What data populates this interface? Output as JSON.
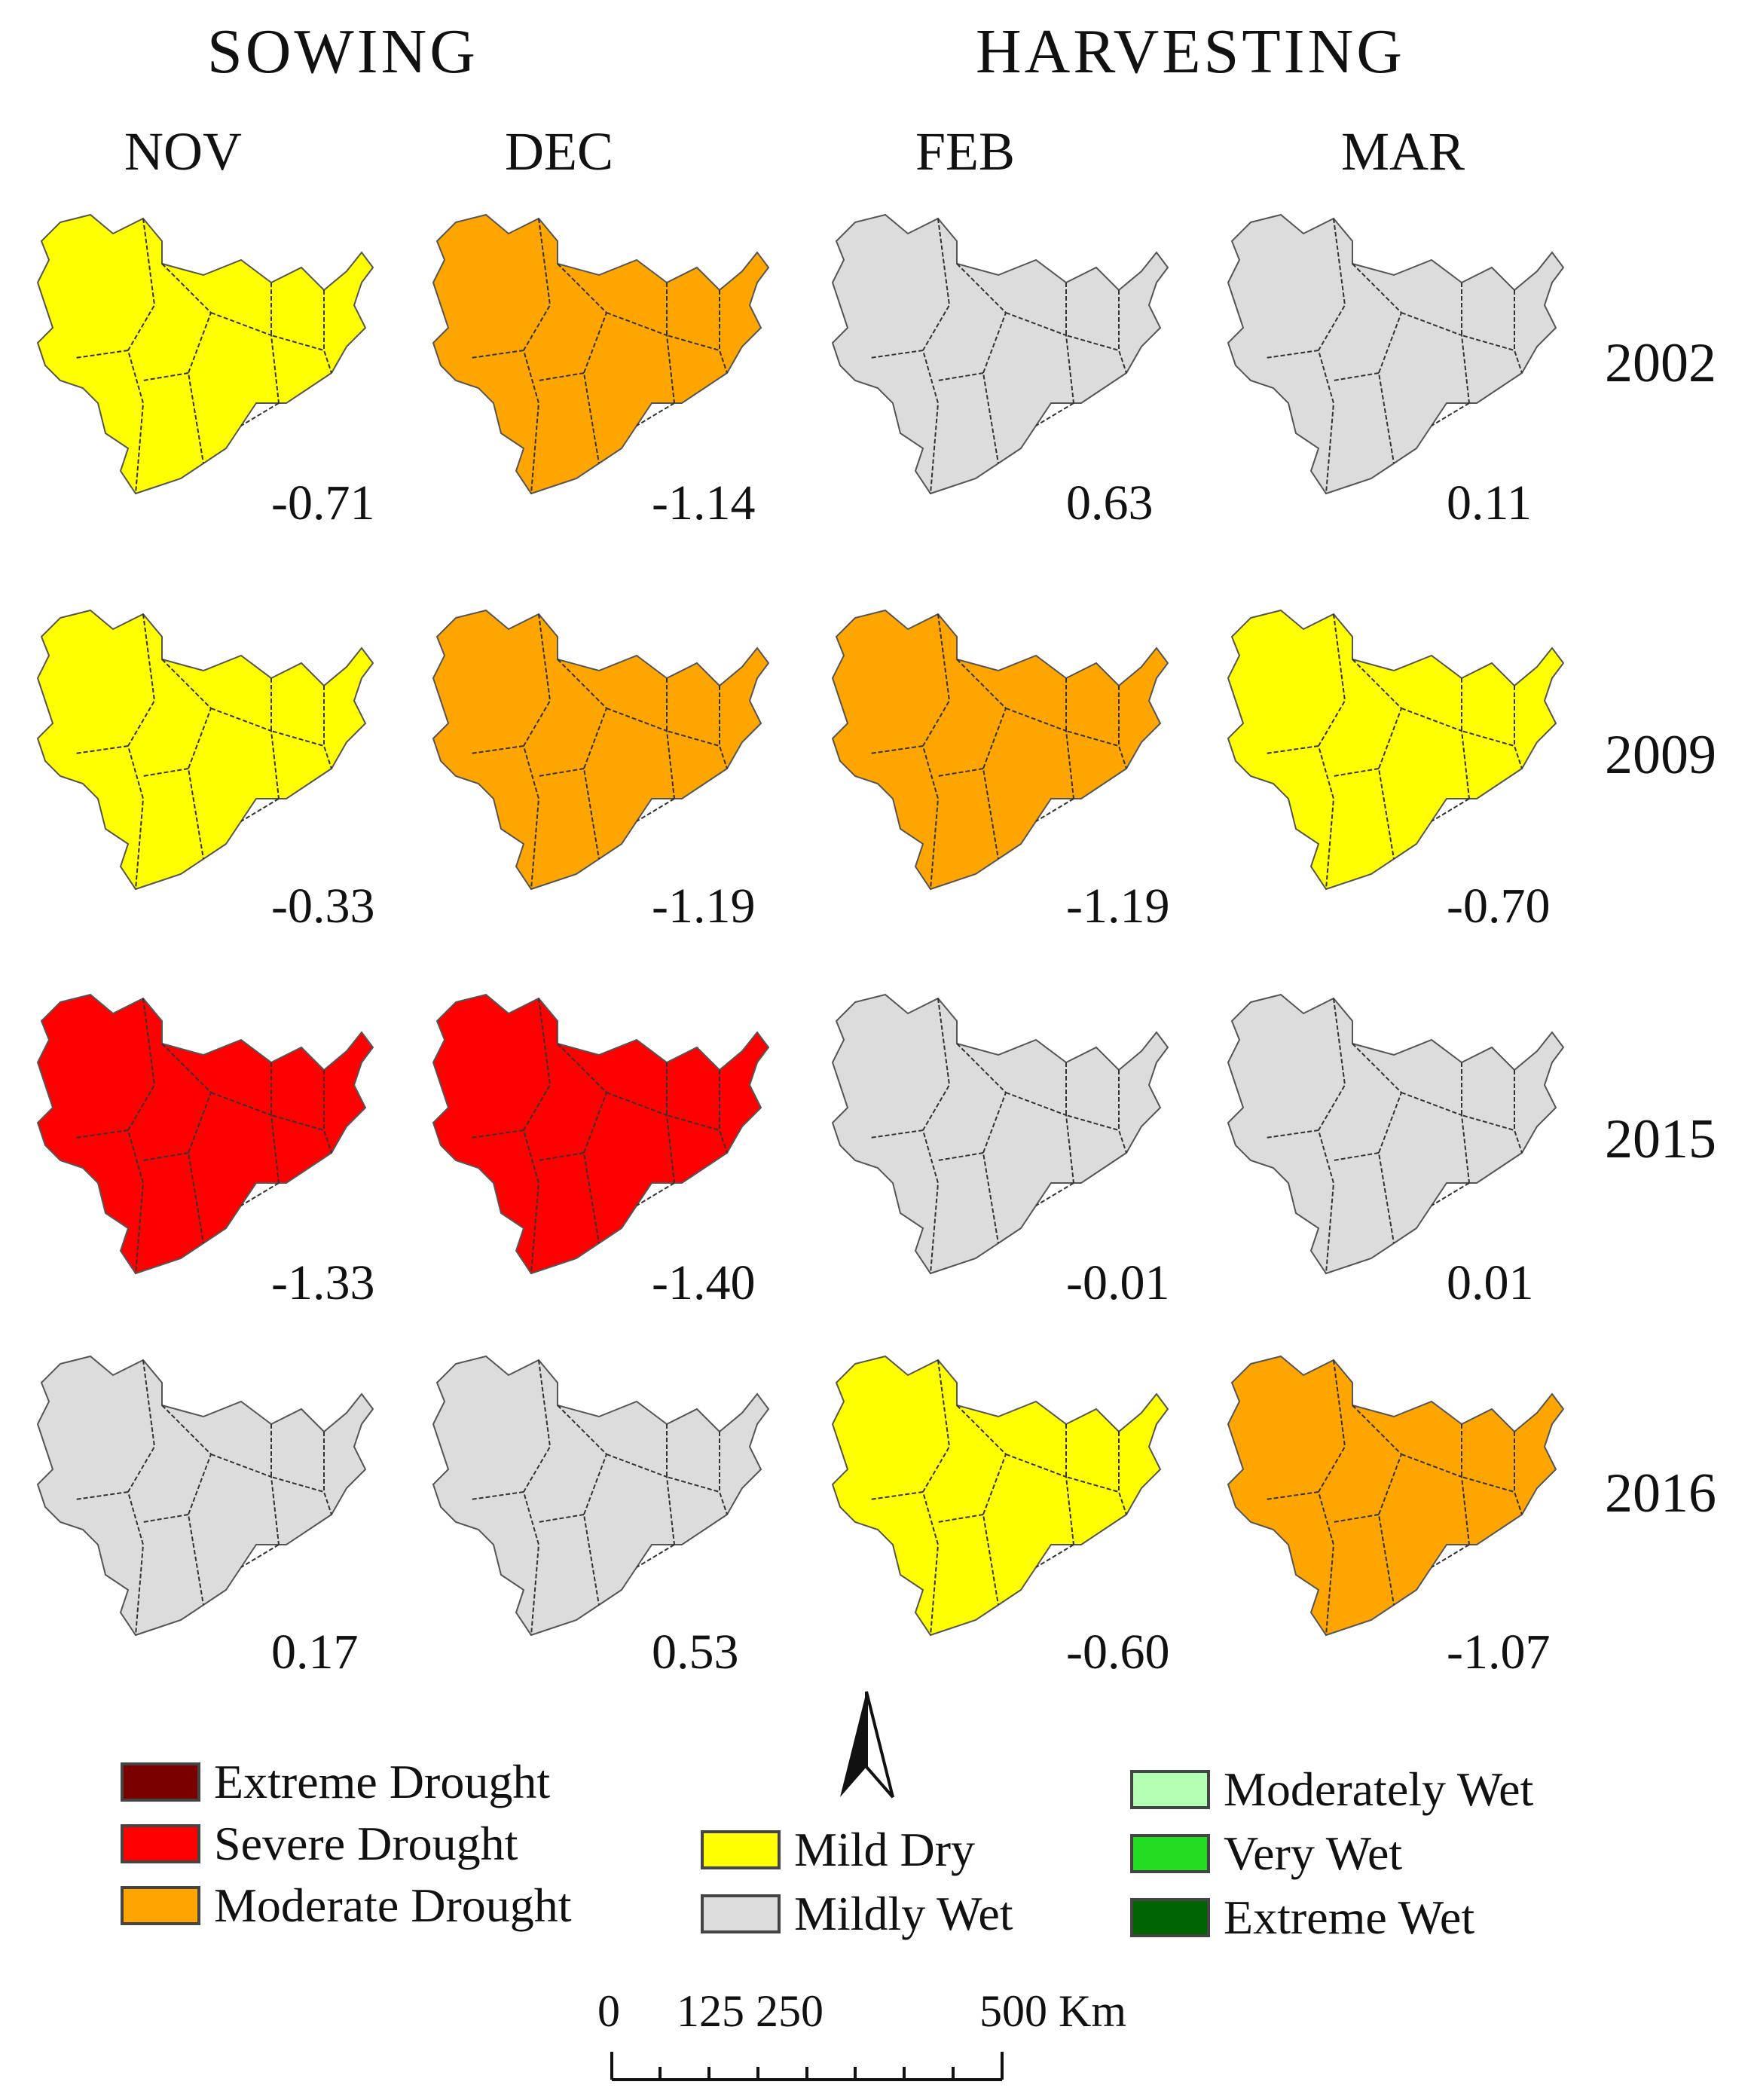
{
  "seasons": [
    "SOWING",
    "HARVESTING"
  ],
  "months": [
    "NOV",
    "DEC",
    "FEB",
    "MAR"
  ],
  "years": [
    "2002",
    "2009",
    "2015",
    "2016"
  ],
  "values": [
    [
      "-0.71",
      "-1.14",
      "0.63",
      "0.11"
    ],
    [
      "-0.33",
      "-1.19",
      "-1.19",
      "-0.70"
    ],
    [
      "-1.33",
      "-1.40",
      "-0.01",
      "0.01"
    ],
    [
      "0.17",
      "0.53",
      "-0.60",
      "-1.07"
    ]
  ],
  "colors": {
    "extreme_drought": "#7a0000",
    "severe_drought": "#ff0000",
    "moderate_drought": "#ffa500",
    "mild_dry": "#ffff00",
    "mildly_wet": "#dcdcdc",
    "moderately_wet": "#b3ffb3",
    "very_wet": "#22dd22",
    "extreme_wet": "#006400"
  },
  "maps": [
    [
      "mild_dry",
      "moderate_drought",
      "mildly_wet",
      "mildly_wet"
    ],
    [
      "mild_dry",
      "moderate_drought",
      "moderate_drought",
      "mild_dry"
    ],
    [
      "severe_drought",
      "severe_drought",
      "mildly_wet",
      "mildly_wet"
    ],
    [
      "mildly_wet",
      "mildly_wet",
      "mild_dry",
      "moderate_drought"
    ]
  ],
  "legend": {
    "col1": [
      {
        "label": "Extreme Drought",
        "color": "#7a0000"
      },
      {
        "label": "Severe Drought",
        "color": "#ff0000"
      },
      {
        "label": "Moderate Drought",
        "color": "#ffa500"
      }
    ],
    "col2": [
      {
        "label": "Mild Dry",
        "color": "#ffff00"
      },
      {
        "label": "Mildly Wet",
        "color": "#dcdcdc"
      }
    ],
    "col3": [
      {
        "label": "Moderately Wet",
        "color": "#b3ffb3"
      },
      {
        "label": "Very Wet",
        "color": "#22dd22"
      },
      {
        "label": "Extreme Wet",
        "color": "#006400"
      }
    ]
  },
  "scale_bar": {
    "labels": [
      "0",
      "125 250",
      "500 Km"
    ]
  }
}
